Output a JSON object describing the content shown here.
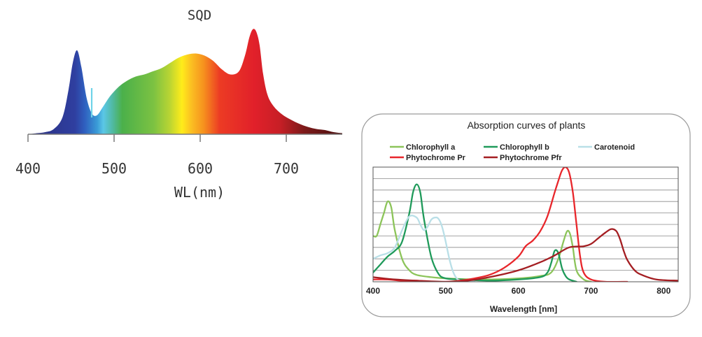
{
  "chart_data": [
    {
      "type": "area",
      "title": "SQD",
      "xlabel": "WL(nm)",
      "ylabel": "",
      "xlim": [
        400,
        765
      ],
      "ylim": [
        0,
        1
      ],
      "x_ticks": [
        "400",
        "500",
        "600",
        "700"
      ],
      "series": [
        {
          "name": "SQD spectrum",
          "x": [
            400,
            410,
            420,
            430,
            440,
            447,
            452,
            457,
            462,
            468,
            474,
            480,
            487,
            495,
            505,
            515,
            525,
            535,
            545,
            555,
            565,
            575,
            585,
            595,
            605,
            615,
            625,
            635,
            645,
            652,
            657,
            661,
            665,
            669,
            673,
            678,
            685,
            695,
            705,
            715,
            725,
            735,
            745,
            755,
            765
          ],
          "values": [
            0.0,
            0.01,
            0.02,
            0.05,
            0.16,
            0.42,
            0.68,
            0.8,
            0.64,
            0.35,
            0.2,
            0.18,
            0.26,
            0.36,
            0.45,
            0.51,
            0.55,
            0.57,
            0.6,
            0.63,
            0.68,
            0.73,
            0.76,
            0.77,
            0.75,
            0.7,
            0.62,
            0.57,
            0.6,
            0.75,
            0.92,
            1.0,
            0.98,
            0.85,
            0.58,
            0.38,
            0.27,
            0.19,
            0.14,
            0.1,
            0.07,
            0.05,
            0.04,
            0.02,
            0.01
          ]
        }
      ],
      "spike": {
        "x": 474,
        "value": 0.44
      }
    },
    {
      "type": "line",
      "title": "Absorption curves of plants",
      "xlabel": "Wavelength [nm]",
      "ylabel": "",
      "xlim": [
        400,
        820
      ],
      "ylim": [
        0,
        1
      ],
      "x_ticks": [
        "400",
        "500",
        "600",
        "700",
        "800"
      ],
      "grid": true,
      "legend": "top",
      "series": [
        {
          "name": "Chlorophyll a",
          "color": "#8cc45a",
          "x": [
            400,
            405,
            410,
            415,
            420,
            425,
            430,
            440,
            450,
            460,
            480,
            500,
            550,
            600,
            630,
            645,
            655,
            662,
            667,
            671,
            675,
            680,
            690,
            700
          ],
          "values": [
            0.4,
            0.4,
            0.5,
            0.6,
            0.7,
            0.65,
            0.45,
            0.2,
            0.1,
            0.06,
            0.04,
            0.03,
            0.02,
            0.03,
            0.05,
            0.08,
            0.2,
            0.35,
            0.44,
            0.42,
            0.3,
            0.1,
            0.02,
            0.0
          ]
        },
        {
          "name": "Chlorophyll b",
          "color": "#1f9a5a",
          "x": [
            400,
            410,
            420,
            430,
            440,
            450,
            455,
            460,
            465,
            470,
            480,
            490,
            500,
            520,
            560,
            600,
            630,
            640,
            645,
            650,
            655,
            660,
            665,
            670,
            680
          ],
          "values": [
            0.08,
            0.15,
            0.22,
            0.27,
            0.35,
            0.6,
            0.78,
            0.85,
            0.78,
            0.55,
            0.22,
            0.07,
            0.03,
            0.02,
            0.01,
            0.02,
            0.04,
            0.08,
            0.16,
            0.27,
            0.25,
            0.12,
            0.05,
            0.02,
            0.0
          ]
        },
        {
          "name": "Carotenoid",
          "color": "#b9dfe7",
          "x": [
            400,
            410,
            420,
            430,
            440,
            450,
            460,
            465,
            470,
            475,
            480,
            485,
            490,
            495,
            500,
            505,
            510,
            515,
            520,
            530,
            540
          ],
          "values": [
            0.2,
            0.23,
            0.25,
            0.3,
            0.45,
            0.57,
            0.56,
            0.5,
            0.45,
            0.48,
            0.54,
            0.56,
            0.55,
            0.48,
            0.35,
            0.2,
            0.09,
            0.03,
            0.01,
            0.0,
            0.0
          ]
        },
        {
          "name": "Phytochrome Pr",
          "color": "#e8262b",
          "x": [
            400,
            420,
            440,
            460,
            480,
            500,
            520,
            540,
            560,
            580,
            600,
            610,
            620,
            630,
            640,
            650,
            655,
            660,
            665,
            670,
            675,
            680,
            685,
            690,
            700,
            720,
            750
          ],
          "values": [
            0.02,
            0.02,
            0.01,
            0.01,
            0.0,
            0.0,
            0.01,
            0.03,
            0.06,
            0.12,
            0.22,
            0.31,
            0.36,
            0.44,
            0.57,
            0.78,
            0.88,
            0.97,
            1.0,
            0.95,
            0.78,
            0.5,
            0.22,
            0.08,
            0.02,
            0.0,
            0.0
          ]
        },
        {
          "name": "Phytochrome Pfr",
          "color": "#a41e22",
          "x": [
            400,
            430,
            460,
            500,
            530,
            560,
            600,
            630,
            650,
            670,
            690,
            700,
            710,
            720,
            728,
            735,
            740,
            745,
            750,
            760,
            770,
            790,
            820
          ],
          "values": [
            0.04,
            0.02,
            0.01,
            0.0,
            0.01,
            0.04,
            0.1,
            0.17,
            0.23,
            0.3,
            0.31,
            0.33,
            0.38,
            0.43,
            0.46,
            0.44,
            0.37,
            0.27,
            0.19,
            0.1,
            0.06,
            0.02,
            0.01
          ]
        }
      ]
    }
  ]
}
